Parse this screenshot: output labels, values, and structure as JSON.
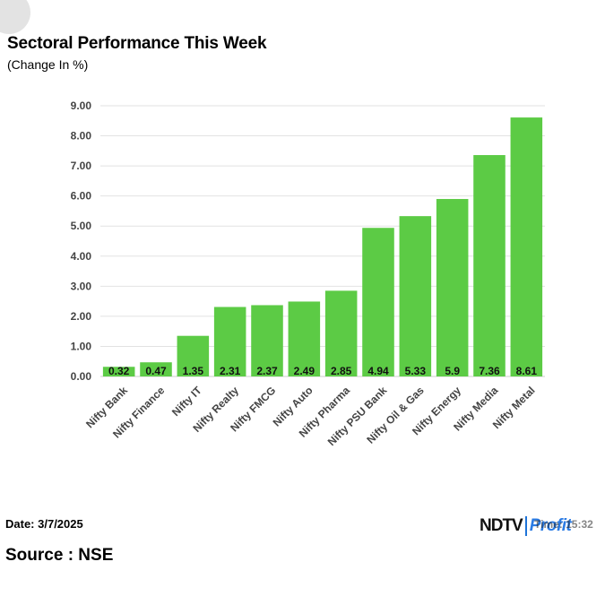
{
  "header": {
    "title": "Sectoral Performance This Week",
    "subtitle": "(Change In %)"
  },
  "footer": {
    "date": "Date: 3/7/2025",
    "source": "Source : NSE",
    "logo_ndtv": "NDTV",
    "logo_profit": "Profit",
    "time_overlay": "Time: 15:32"
  },
  "colors": {
    "bar": "#5ccb45",
    "grid": "#e2e2e2",
    "axis_text": "#444444",
    "label_text": "#111111"
  },
  "chart_data": {
    "type": "bar",
    "categories": [
      "Nifty Bank",
      "Nifty Finance",
      "Nifty IT",
      "Nifty Realty",
      "Nifty FMCG",
      "Nifty Auto",
      "Nifty Pharma",
      "Nifty PSU Bank",
      "Nifty Oil & Gas",
      "Nifty Energy",
      "Nifty Media",
      "Nifty Metal"
    ],
    "values": [
      0.32,
      0.47,
      1.35,
      2.31,
      2.37,
      2.49,
      2.85,
      4.94,
      5.33,
      5.9,
      7.36,
      8.61
    ],
    "value_labels": [
      "0.32",
      "0.47",
      "1.35",
      "2.31",
      "2.37",
      "2.49",
      "2.85",
      "4.94",
      "5.33",
      "5.9",
      "7.36",
      "8.61"
    ],
    "ylim": [
      0,
      9
    ],
    "yticks": [
      "0.00",
      "1.00",
      "2.00",
      "3.00",
      "4.00",
      "5.00",
      "6.00",
      "7.00",
      "8.00",
      "9.00"
    ],
    "grid": true,
    "legend": "none"
  }
}
